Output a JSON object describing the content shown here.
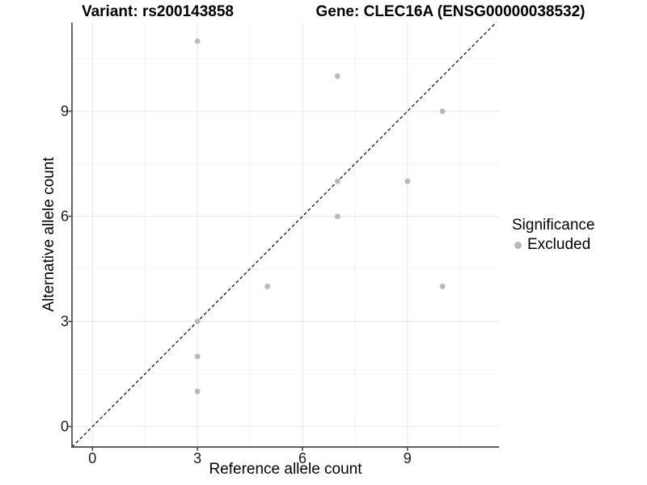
{
  "titles": {
    "variant": "Variant: rs200143858",
    "gene": "Gene: CLEC16A (ENSG00000038532)"
  },
  "axes": {
    "x": {
      "label": "Reference allele count",
      "tick_labels": [
        "0",
        "3",
        "6",
        "9"
      ],
      "tick_values": [
        0,
        3,
        6,
        9
      ],
      "minor_values": [
        1.5,
        4.5,
        7.5,
        10.5
      ]
    },
    "y": {
      "label": "Alternative allele count",
      "tick_labels": [
        "0",
        "3",
        "6",
        "9"
      ],
      "tick_values": [
        0,
        3,
        6,
        9
      ],
      "minor_values": [
        1.5,
        4.5,
        7.5,
        10.5
      ]
    }
  },
  "legend": {
    "title": "Significance",
    "items": [
      {
        "label": "Excluded",
        "color": "#b9b9b9"
      }
    ]
  },
  "colors": {
    "point": "#b9b9b9",
    "grid_major": "#e8e8e8",
    "grid_minor": "#f2f2f2",
    "axis_line": "#4a4a4a",
    "abline": "#000000",
    "text": "#000000"
  },
  "chart_data": {
    "type": "scatter",
    "title": "Variant: rs200143858 — Gene: CLEC16A (ENSG00000038532)",
    "xlabel": "Reference allele count",
    "ylabel": "Alternative allele count",
    "xlim": [
      0,
      11
    ],
    "ylim": [
      0,
      11
    ],
    "x_range_expanded": [
      -0.585,
      11.615
    ],
    "y_range_expanded": [
      -0.585,
      11.53
    ],
    "grid": "on",
    "legend_position": "right",
    "reference_line": {
      "type": "abline",
      "slope": 1,
      "intercept": 0,
      "style": "dashed"
    },
    "series": [
      {
        "name": "Excluded",
        "color": "#b9b9b9",
        "points": [
          [
            3,
            11
          ],
          [
            7,
            10
          ],
          [
            10,
            9
          ],
          [
            9,
            7
          ],
          [
            7,
            7
          ],
          [
            7,
            6
          ],
          [
            5,
            4
          ],
          [
            10,
            4
          ],
          [
            3,
            3
          ],
          [
            3,
            2
          ],
          [
            3,
            1
          ]
        ]
      }
    ]
  }
}
